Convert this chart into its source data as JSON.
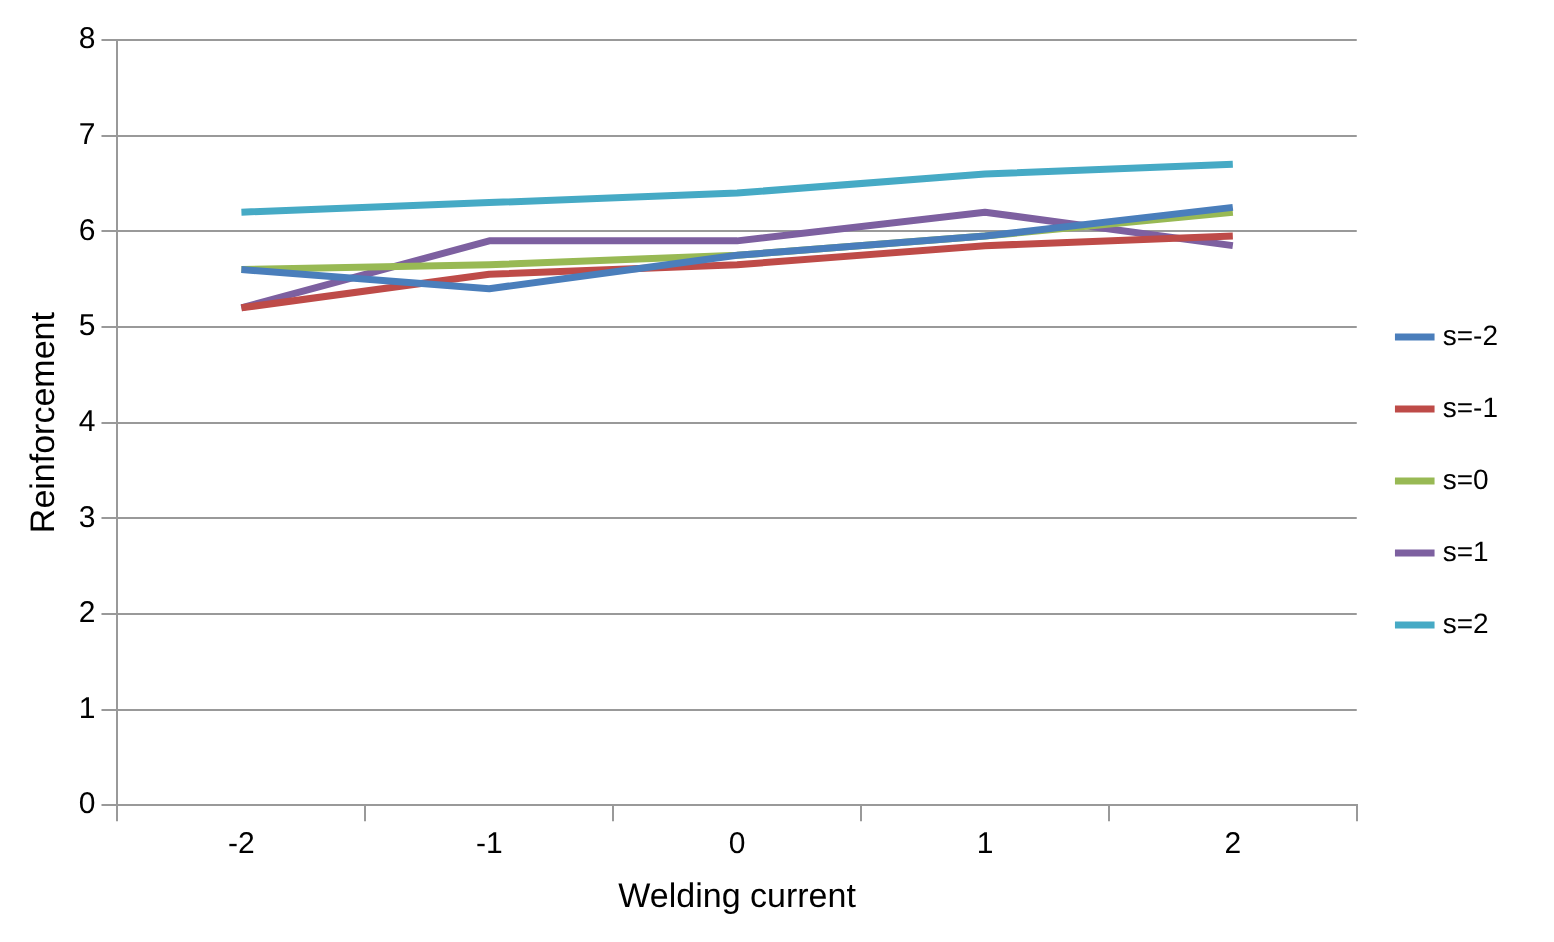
{
  "chart_data": {
    "type": "line",
    "xlabel": "Welding current",
    "ylabel": "Reinforcement",
    "categories": [
      "-2",
      "-1",
      "0",
      "1",
      "2"
    ],
    "series": [
      {
        "name": "s=-2",
        "color": "#4a7ebb",
        "values": [
          5.6,
          5.4,
          5.75,
          5.95,
          6.25
        ]
      },
      {
        "name": "s=-1",
        "color": "#be4b48",
        "values": [
          5.2,
          5.55,
          5.65,
          5.85,
          5.95
        ]
      },
      {
        "name": "s=0",
        "color": "#98b954",
        "values": [
          5.6,
          5.65,
          5.75,
          5.95,
          6.2
        ]
      },
      {
        "name": "s=1",
        "color": "#7d60a0",
        "values": [
          5.2,
          5.9,
          5.9,
          6.2,
          5.85
        ]
      },
      {
        "name": "s=2",
        "color": "#46aac5",
        "values": [
          6.2,
          6.3,
          6.4,
          6.6,
          6.7
        ]
      }
    ],
    "ylim": [
      0,
      8
    ],
    "yticks": [
      0,
      1,
      2,
      3,
      4,
      5,
      6,
      7,
      8
    ],
    "grid": "y",
    "legend": "right",
    "marker": "none",
    "line_style": "solid"
  }
}
